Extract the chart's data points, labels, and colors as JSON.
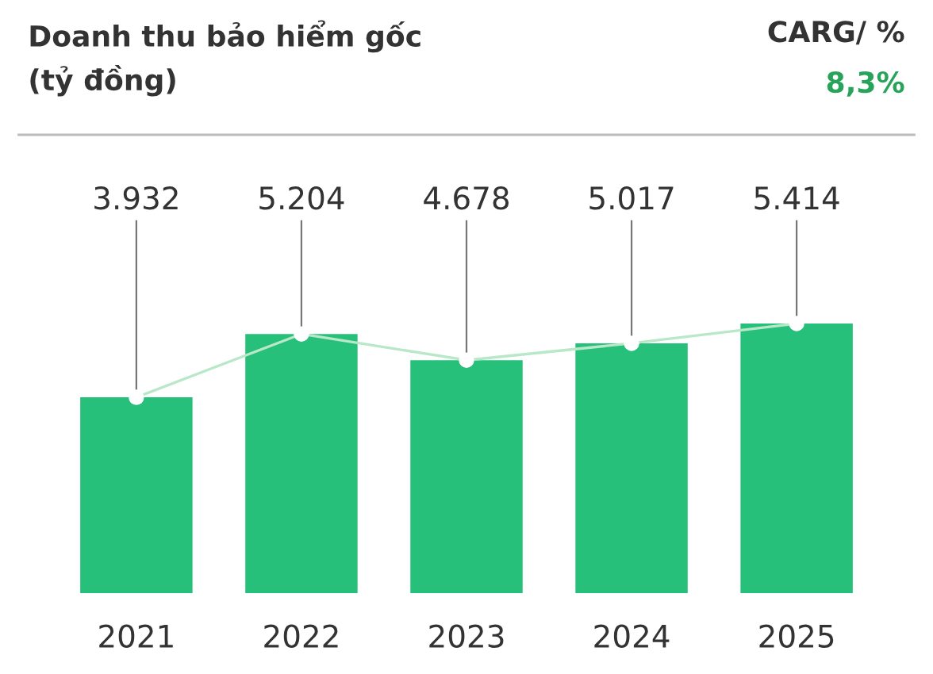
{
  "chart_data": {
    "type": "bar",
    "title": "Doanh thu bảo hiểm gốc\n(tỷ đồng)",
    "categories": [
      "2021",
      "2022",
      "2023",
      "2024",
      "2025"
    ],
    "series": [
      {
        "color": "#27c07a",
        "values": [
          3932,
          5204,
          4678,
          5017,
          5414
        ],
        "value_labels": [
          "3.932",
          "5.204",
          "4.678",
          "5.017",
          "5.414"
        ]
      },
      {
        "type": "line",
        "color": "#b8e8c8",
        "marker": "circle",
        "values": [
          3932,
          5204,
          4678,
          5017,
          5414
        ]
      }
    ],
    "annotations": [
      "CARG/ %",
      "8,3%"
    ],
    "grid": false,
    "legend": false
  }
}
